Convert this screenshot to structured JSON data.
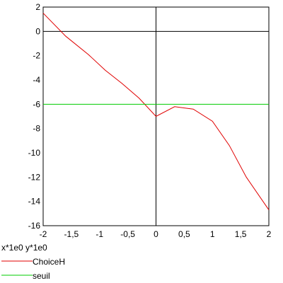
{
  "chart_data": {
    "type": "line",
    "xlim": [
      -2,
      2
    ],
    "ylim": [
      -16,
      2
    ],
    "x_ticks": [
      -2,
      -1.5,
      -1,
      -0.5,
      0,
      0.5,
      1,
      1.5,
      2
    ],
    "x_tick_labels": [
      "-2",
      "-1,5",
      "-1",
      "-0,5",
      "0",
      "0,5",
      "1",
      "1,5",
      "2"
    ],
    "y_ticks": [
      2,
      0,
      -2,
      -4,
      -6,
      -8,
      -10,
      -12,
      -14,
      -16
    ],
    "y_tick_labels": [
      "2",
      "0",
      "-2",
      "-4",
      "-6",
      "-8",
      "-10",
      "-12",
      "-14",
      "-16"
    ],
    "axis_scale_label": "x*1e0  y*1e0",
    "grid": false,
    "legend_position": "bottom-left",
    "series": [
      {
        "name": "ChoiceH",
        "color": "#e00000",
        "x": [
          -2,
          -1.6,
          -1.2,
          -0.9,
          -0.6,
          -0.3,
          0,
          0.33,
          0.66,
          1.0,
          1.3,
          1.6,
          2.0
        ],
        "y": [
          1.5,
          -0.4,
          -1.9,
          -3.2,
          -4.3,
          -5.5,
          -7.0,
          -6.2,
          -6.4,
          -7.4,
          -9.4,
          -12.0,
          -14.7
        ]
      },
      {
        "name": "seuil",
        "color": "#00cc00",
        "x": [
          -2,
          2
        ],
        "y": [
          -6,
          -6
        ]
      }
    ]
  }
}
